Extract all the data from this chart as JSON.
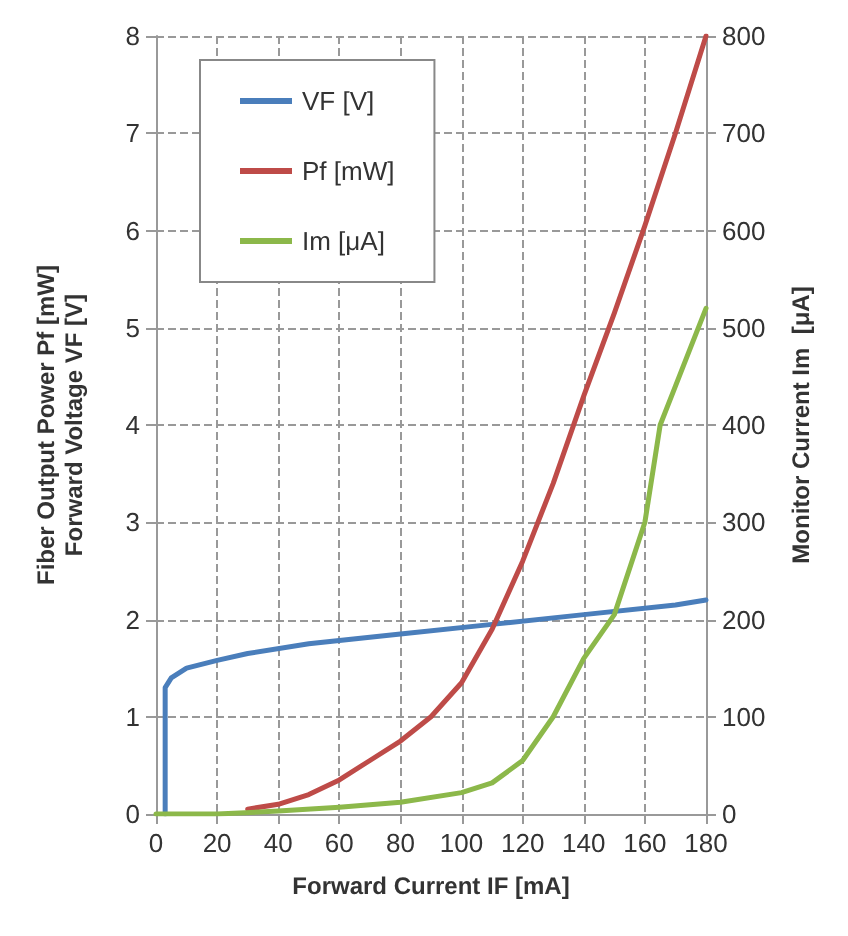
{
  "chart_data": {
    "type": "line",
    "xlabel": "Forward Current IF [mA]",
    "ylabel": "Fiber Output Power Pf [mW]\nForward Voltage VF [V]",
    "y2label": "Monitor Current Im  [μA]",
    "xlim": [
      0,
      180
    ],
    "xticks": [
      0,
      20,
      40,
      60,
      80,
      100,
      120,
      140,
      160,
      180
    ],
    "ylim": [
      0,
      8
    ],
    "yticks": [
      0,
      1,
      2,
      3,
      4,
      5,
      6,
      7,
      8
    ],
    "y2lim": [
      0,
      800
    ],
    "y2ticks": [
      0,
      100,
      200,
      300,
      400,
      500,
      600,
      700,
      800
    ],
    "grid": true,
    "legend": "top left",
    "marker": "none",
    "line_style": "solid",
    "series": [
      {
        "name": "VF [V]",
        "color": "#4a7ebb",
        "x": [
          3,
          3,
          5,
          10,
          20,
          30,
          50,
          80,
          110,
          140,
          170,
          180
        ],
        "values": [
          0,
          1.3,
          1.4,
          1.5,
          1.58,
          1.65,
          1.75,
          1.85,
          1.95,
          2.05,
          2.15,
          2.2
        ]
      },
      {
        "name": "Pf [mW]",
        "color": "#be4b48",
        "x": [
          30,
          40,
          50,
          60,
          70,
          80,
          90,
          100,
          110,
          120,
          130,
          140,
          150,
          160,
          170,
          180
        ],
        "values": [
          0.05,
          0.1,
          0.2,
          0.35,
          0.55,
          0.75,
          1.0,
          1.35,
          1.9,
          2.6,
          3.4,
          4.3,
          5.15,
          6.05,
          7.0,
          8.0
        ]
      },
      {
        "name": "Im [μA]",
        "color": "#8cb84a",
        "axis": "y2",
        "x": [
          0,
          20,
          40,
          60,
          80,
          100,
          110,
          120,
          130,
          140,
          150,
          160,
          165,
          170,
          175,
          180
        ],
        "values": [
          0,
          0,
          3,
          7,
          12,
          22,
          32,
          55,
          100,
          160,
          205,
          300,
          400,
          440,
          480,
          520
        ]
      }
    ]
  }
}
